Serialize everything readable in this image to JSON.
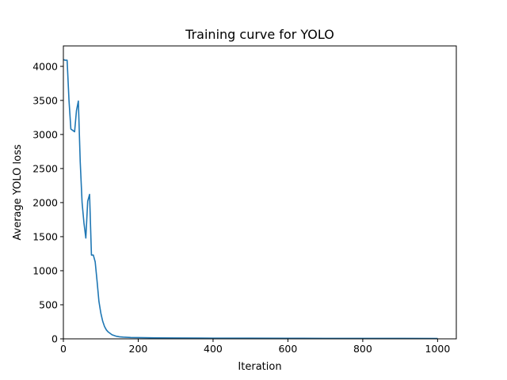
{
  "chart_data": {
    "type": "line",
    "title": "Training curve for YOLO",
    "xlabel": "Iteration",
    "ylabel": "Average YOLO loss",
    "xlim": [
      0,
      1050
    ],
    "ylim": [
      0,
      4300
    ],
    "xticks": [
      0,
      200,
      400,
      600,
      800,
      1000
    ],
    "yticks": [
      0,
      500,
      1000,
      1500,
      2000,
      2500,
      3000,
      3500,
      4000
    ],
    "grid": false,
    "legend": "none",
    "series": [
      {
        "color": "#1f77b4",
        "x": [
          0,
          5,
          10,
          15,
          20,
          25,
          30,
          35,
          40,
          45,
          50,
          55,
          60,
          65,
          70,
          75,
          80,
          85,
          90,
          95,
          100,
          105,
          110,
          115,
          120,
          130,
          140,
          150,
          160,
          180,
          200,
          250,
          300,
          400,
          500,
          600,
          700,
          800,
          900,
          1000
        ],
        "y": [
          4100,
          4090,
          4090,
          3500,
          3080,
          3060,
          3040,
          3350,
          3490,
          2600,
          2000,
          1700,
          1480,
          2020,
          2120,
          1230,
          1230,
          1130,
          850,
          550,
          380,
          260,
          180,
          130,
          100,
          60,
          40,
          30,
          25,
          20,
          18,
          14,
          12,
          10,
          9,
          8,
          7,
          6,
          6,
          5
        ]
      }
    ]
  }
}
